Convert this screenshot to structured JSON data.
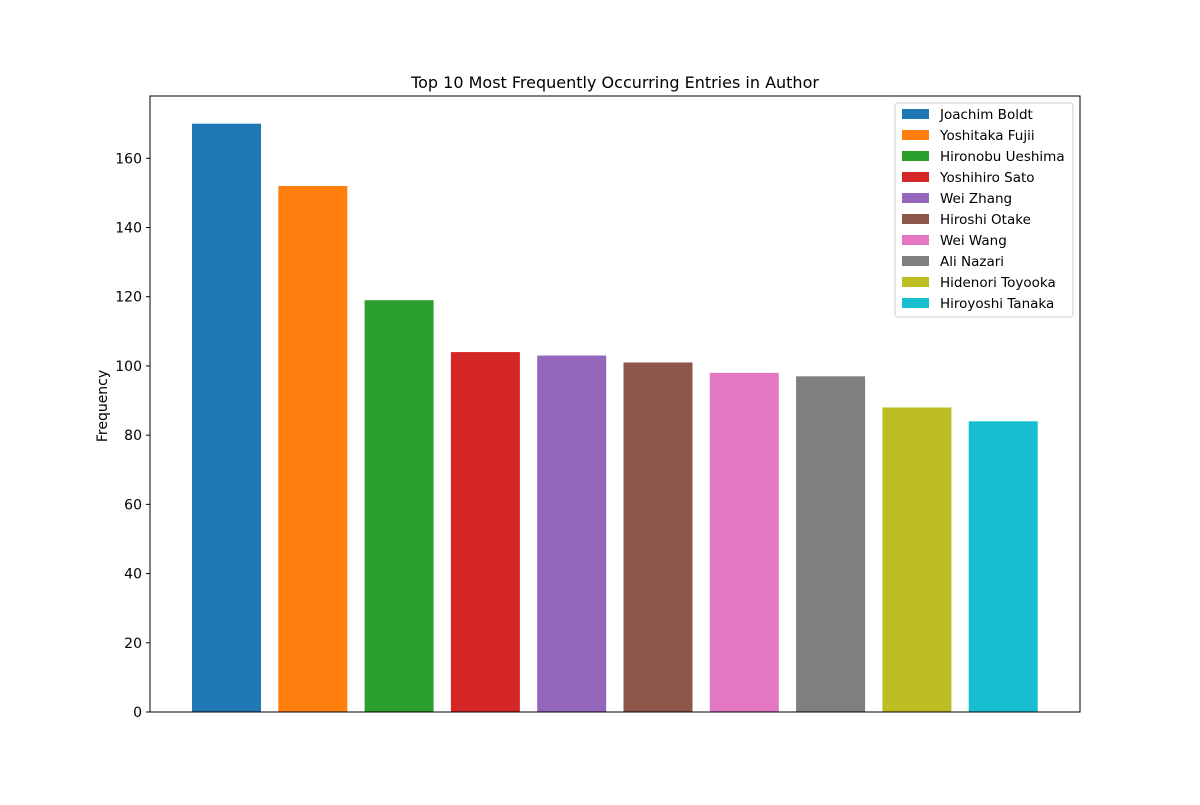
{
  "chart_data": {
    "type": "bar",
    "title": "Top 10 Most Frequently Occurring Entries in Author",
    "xlabel": "",
    "ylabel": "Frequency",
    "ylim": [
      0,
      178
    ],
    "yticks": [
      0,
      20,
      40,
      60,
      80,
      100,
      120,
      140,
      160
    ],
    "grid": false,
    "legend_position": "top-right",
    "categories": [
      "Joachim Boldt",
      "Yoshitaka Fujii",
      "Hironobu Ueshima",
      "Yoshihiro Sato",
      "Wei Zhang",
      "Hiroshi Otake",
      "Wei Wang",
      "Ali Nazari",
      "Hidenori Toyooka",
      "Hiroyoshi Tanaka"
    ],
    "values": [
      170,
      152,
      119,
      104,
      103,
      101,
      98,
      97,
      88,
      84
    ],
    "colors": [
      "#1f77b4",
      "#ff7f0e",
      "#2ca02c",
      "#d62728",
      "#9467bd",
      "#8c564b",
      "#e377c2",
      "#7f7f7f",
      "#bcbd22",
      "#17becf"
    ]
  }
}
